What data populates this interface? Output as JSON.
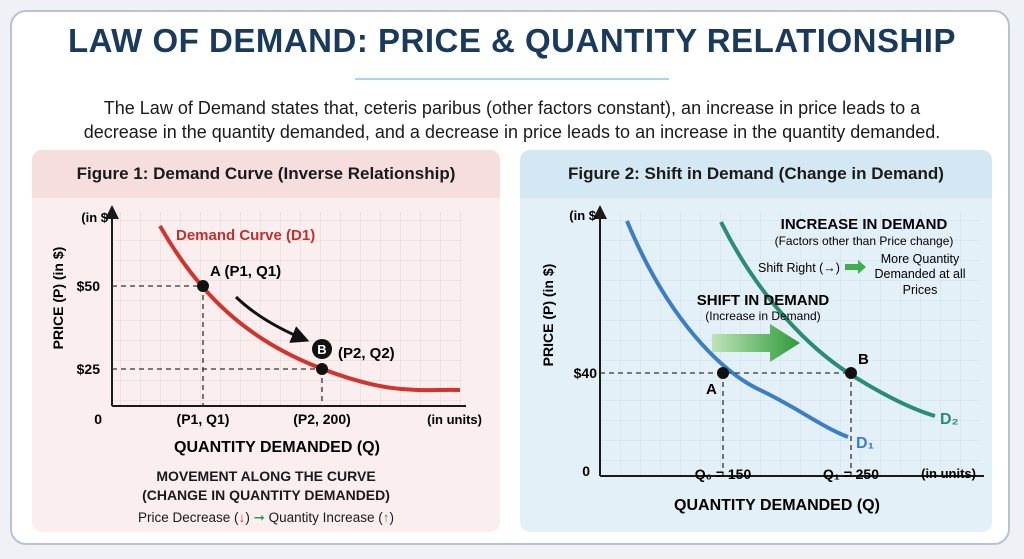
{
  "header": {
    "title": "LAW OF DEMAND: PRICE & QUANTITY RELATIONSHIP",
    "intro_line1": "The Law of Demand states that, ceteris paribus (other factors constant), an increase in price leads to a",
    "intro_line2": "decrease in the quantity demanded, and a decrease in price leads to an increase in the quantity demanded."
  },
  "figure1": {
    "title": "Figure 1: Demand Curve (Inverse Relationship)",
    "y_unit": "(in $",
    "x_unit": "(in units)",
    "y_axis_label": "PRICE (P) (in $)",
    "x_axis_label": "QUANTITY DEMANDED (Q)",
    "origin": "0",
    "curve_label": "Demand Curve (D1)",
    "price_high": "$50",
    "price_low": "$25",
    "qty_a": "(P1, Q1)",
    "qty_b": "(P2, 200)",
    "point_a_label": "A (P1, Q1)",
    "point_b_letter": "B",
    "point_b_label": "(P2, Q2)",
    "caption_line1": "MOVEMENT ALONG THE CURVE",
    "caption_line2": "(CHANGE IN QUANTITY DEMANDED)",
    "caption_left": "Price Decrease (",
    "caption_mid": ")",
    "caption_right": "Quantity Increase (",
    "caption_end": ")",
    "colors": {
      "curve": "#d0342c",
      "accent": "#2e9a55"
    }
  },
  "figure2": {
    "title": "Figure 2: Shift in Demand (Change in Demand)",
    "y_unit": "(in $",
    "x_unit": "(in units)",
    "y_axis_label": "PRICE (P) (in $)",
    "x_axis_label": "QUANTITY DEMANDED (Q)",
    "origin": "0",
    "price": "$40",
    "qty_0": "Q₀ = 150",
    "qty_1": "Q₁ = 250",
    "point_a": "A",
    "point_b": "B",
    "d1_label": "D₁",
    "d2_label": "D₂",
    "increase_title": "INCREASE IN DEMAND",
    "increase_sub": "(Factors other than Price change)",
    "shift_right": "Shift Right (→)",
    "more_line1": "More Quantity",
    "more_line2": "Demanded at all",
    "more_line3": "Prices",
    "shift_title": "SHIFT IN DEMAND",
    "shift_sub": "(Increase in Demand)",
    "colors": {
      "d1": "#3a7fc4",
      "d2": "#2a8c74",
      "arrow": "#3fae4f"
    }
  }
}
